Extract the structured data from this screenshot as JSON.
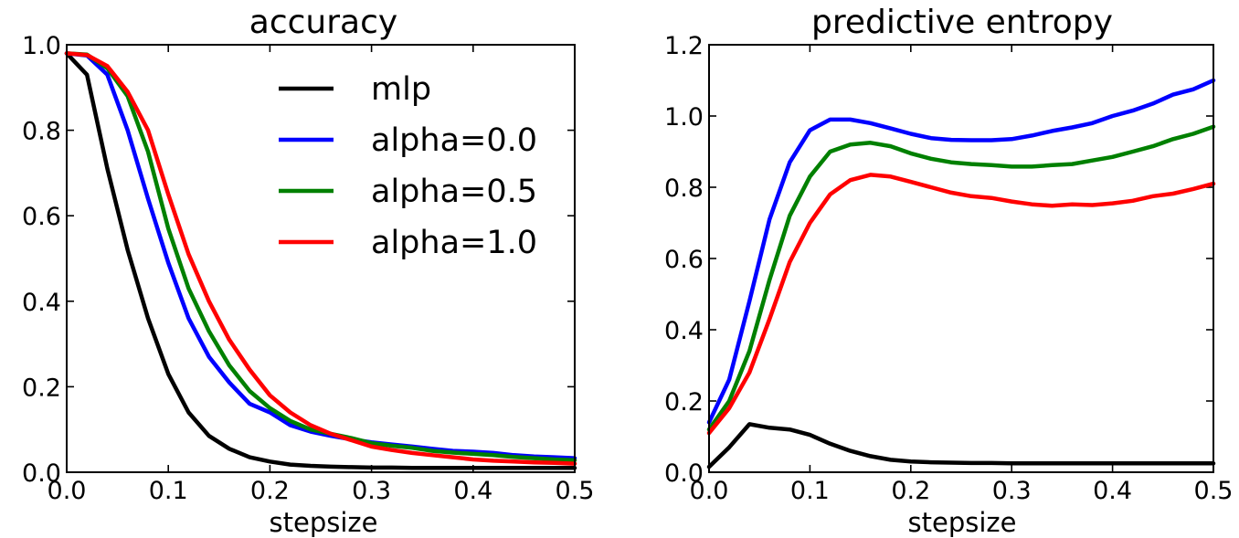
{
  "chart_data": [
    {
      "type": "line",
      "title": "accuracy",
      "xlabel": "stepsize",
      "ylabel": "",
      "xlim": [
        0.0,
        0.5
      ],
      "ylim": [
        0.0,
        1.0
      ],
      "xticks": [
        "0.0",
        "0.1",
        "0.2",
        "0.3",
        "0.4",
        "0.5"
      ],
      "yticks": [
        "0.0",
        "0.2",
        "0.4",
        "0.6",
        "0.8",
        "1.0"
      ],
      "grid": false,
      "legend": "upper right",
      "x": [
        0.0,
        0.02,
        0.04,
        0.06,
        0.08,
        0.1,
        0.12,
        0.14,
        0.16,
        0.18,
        0.2,
        0.22,
        0.24,
        0.26,
        0.28,
        0.3,
        0.32,
        0.34,
        0.36,
        0.38,
        0.4,
        0.42,
        0.44,
        0.46,
        0.48,
        0.5
      ],
      "series": [
        {
          "name": "mlp",
          "color": "#000000",
          "values": [
            0.98,
            0.93,
            0.71,
            0.52,
            0.36,
            0.23,
            0.14,
            0.085,
            0.055,
            0.035,
            0.025,
            0.018,
            0.015,
            0.013,
            0.012,
            0.011,
            0.011,
            0.01,
            0.01,
            0.01,
            0.01,
            0.01,
            0.01,
            0.01,
            0.01,
            0.01
          ]
        },
        {
          "name": "alpha=0.0",
          "color": "#0000ff",
          "values": [
            0.98,
            0.975,
            0.93,
            0.8,
            0.64,
            0.49,
            0.36,
            0.27,
            0.21,
            0.16,
            0.14,
            0.11,
            0.095,
            0.085,
            0.077,
            0.07,
            0.065,
            0.06,
            0.055,
            0.05,
            0.048,
            0.045,
            0.04,
            0.037,
            0.035,
            0.033
          ]
        },
        {
          "name": "alpha=0.5",
          "color": "#008000",
          "values": [
            0.98,
            0.977,
            0.945,
            0.88,
            0.75,
            0.57,
            0.43,
            0.33,
            0.25,
            0.19,
            0.15,
            0.12,
            0.1,
            0.09,
            0.08,
            0.068,
            0.062,
            0.057,
            0.05,
            0.046,
            0.043,
            0.04,
            0.036,
            0.033,
            0.03,
            0.028
          ]
        },
        {
          "name": "alpha=1.0",
          "color": "#ff0000",
          "values": [
            0.98,
            0.976,
            0.95,
            0.89,
            0.8,
            0.65,
            0.51,
            0.4,
            0.31,
            0.24,
            0.18,
            0.14,
            0.11,
            0.09,
            0.075,
            0.06,
            0.052,
            0.045,
            0.04,
            0.035,
            0.03,
            0.027,
            0.025,
            0.023,
            0.022,
            0.02
          ]
        }
      ]
    },
    {
      "type": "line",
      "title": "predictive entropy",
      "xlabel": "stepsize",
      "ylabel": "",
      "xlim": [
        0.0,
        0.5
      ],
      "ylim": [
        0.0,
        1.2
      ],
      "xticks": [
        "0.0",
        "0.1",
        "0.2",
        "0.3",
        "0.4",
        "0.5"
      ],
      "yticks": [
        "0.0",
        "0.2",
        "0.4",
        "0.6",
        "0.8",
        "1.0",
        "1.2"
      ],
      "grid": false,
      "x": [
        0.0,
        0.02,
        0.04,
        0.06,
        0.08,
        0.1,
        0.12,
        0.14,
        0.16,
        0.18,
        0.2,
        0.22,
        0.24,
        0.26,
        0.28,
        0.3,
        0.32,
        0.34,
        0.36,
        0.38,
        0.4,
        0.42,
        0.44,
        0.46,
        0.48,
        0.5
      ],
      "series": [
        {
          "name": "mlp",
          "color": "#000000",
          "values": [
            0.015,
            0.07,
            0.135,
            0.125,
            0.12,
            0.105,
            0.08,
            0.06,
            0.045,
            0.035,
            0.03,
            0.028,
            0.027,
            0.026,
            0.026,
            0.025,
            0.025,
            0.025,
            0.025,
            0.025,
            0.025,
            0.025,
            0.025,
            0.025,
            0.025,
            0.025
          ]
        },
        {
          "name": "alpha=0.0",
          "color": "#0000ff",
          "values": [
            0.14,
            0.26,
            0.48,
            0.71,
            0.87,
            0.96,
            0.99,
            0.99,
            0.98,
            0.965,
            0.95,
            0.938,
            0.933,
            0.932,
            0.932,
            0.935,
            0.945,
            0.958,
            0.968,
            0.98,
            1.0,
            1.015,
            1.035,
            1.06,
            1.075,
            1.1
          ]
        },
        {
          "name": "alpha=0.5",
          "color": "#008000",
          "values": [
            0.12,
            0.2,
            0.34,
            0.54,
            0.72,
            0.83,
            0.9,
            0.92,
            0.925,
            0.915,
            0.895,
            0.88,
            0.87,
            0.865,
            0.862,
            0.858,
            0.858,
            0.862,
            0.865,
            0.875,
            0.885,
            0.9,
            0.915,
            0.935,
            0.95,
            0.97
          ]
        },
        {
          "name": "alpha=1.0",
          "color": "#ff0000",
          "values": [
            0.11,
            0.18,
            0.28,
            0.43,
            0.59,
            0.7,
            0.78,
            0.82,
            0.835,
            0.83,
            0.815,
            0.8,
            0.785,
            0.775,
            0.77,
            0.76,
            0.752,
            0.748,
            0.752,
            0.75,
            0.755,
            0.762,
            0.775,
            0.782,
            0.795,
            0.81
          ]
        }
      ]
    }
  ]
}
